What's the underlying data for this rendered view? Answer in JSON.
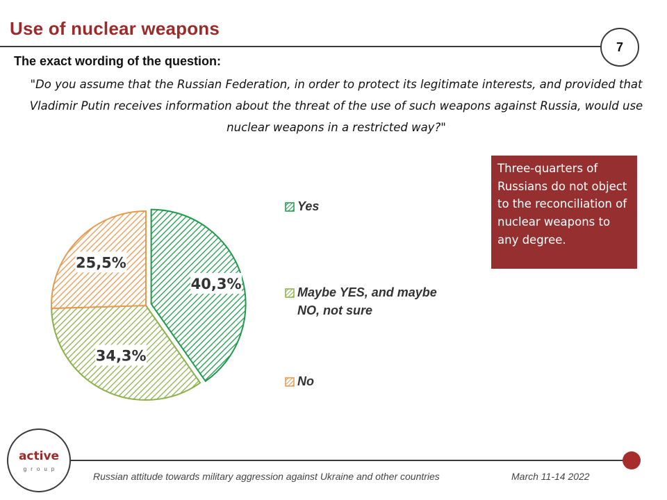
{
  "header": {
    "title": "Use of nuclear weapons",
    "page_number": "7"
  },
  "question": {
    "heading": "The exact wording of the question:",
    "text": "\"Do you assume that the Russian Federation, in order to protect its legitimate interests, and provided that Vladimir Putin receives information about the threat of the use of such weapons against Russia, would use nuclear weapons in a restricted way?\""
  },
  "callout": {
    "text": "Three-quarters of Russians do not object to the reconciliation of nuclear weapons to any degree."
  },
  "colors": {
    "accent": "#9b2b2b",
    "callout_bg": "#963030",
    "yes": "#1f9a4c",
    "maybe": "#8cb04a",
    "no": "#e59a50"
  },
  "chart_data": {
    "type": "pie",
    "slices": [
      {
        "label": "Yes",
        "value": 40.3,
        "value_label": "40,3%",
        "color": "#1f9a4c"
      },
      {
        "label": "Maybe YES, and maybe NO, not sure",
        "value": 34.3,
        "value_label": "34,3%",
        "color": "#8cb04a"
      },
      {
        "label": "No",
        "value": 25.5,
        "value_label": "25,5%",
        "color": "#e59a50"
      }
    ],
    "start_angle": "12 o'clock, clockwise",
    "legend_position": "right",
    "exploded_slice": "Yes"
  },
  "logo": {
    "main": "active",
    "sub": "group"
  },
  "footer": {
    "left": "Russian attitude towards military aggression against Ukraine and other countries",
    "right": "March 11-14 2022"
  }
}
